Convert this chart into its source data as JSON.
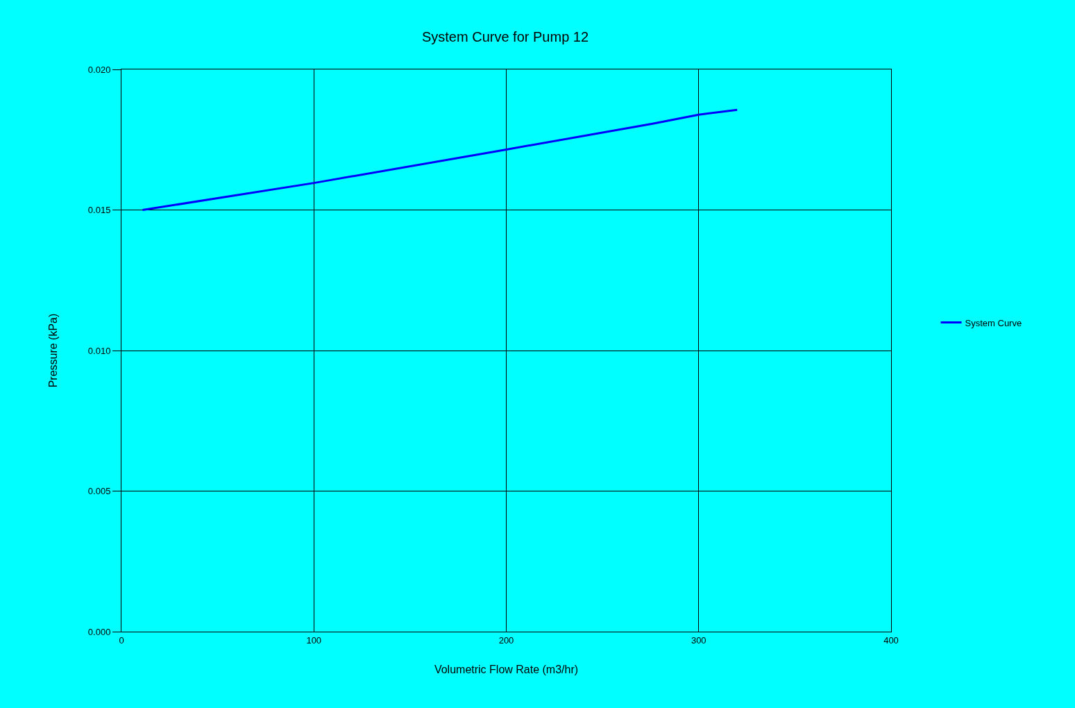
{
  "chart_data": {
    "type": "line",
    "title": "System Curve for Pump 12",
    "xlabel": "Volumetric Flow Rate (m3/hr)",
    "ylabel": "Pressure (kPa)",
    "x": [
      11,
      100,
      200,
      276,
      300,
      320
    ],
    "series": [
      {
        "name": "System Curve",
        "color": "#0000ff",
        "values": [
          0.015,
          0.01596,
          0.01715,
          0.01807,
          0.01839,
          0.01856
        ]
      }
    ],
    "xlim": [
      0,
      400
    ],
    "xticks": [
      0,
      100,
      200,
      300,
      400
    ],
    "ylim": [
      0,
      0.02
    ],
    "yticks": [
      {
        "value": 0,
        "label": "0.000"
      },
      {
        "value": 0.005,
        "label": "0.005"
      },
      {
        "value": 0.01,
        "label": "0.010"
      },
      {
        "value": 0.015,
        "label": "0.015"
      },
      {
        "value": 0.02,
        "label": "0.020"
      }
    ],
    "grid": true,
    "legend": "right",
    "marker": "none",
    "line_style": "solid"
  }
}
